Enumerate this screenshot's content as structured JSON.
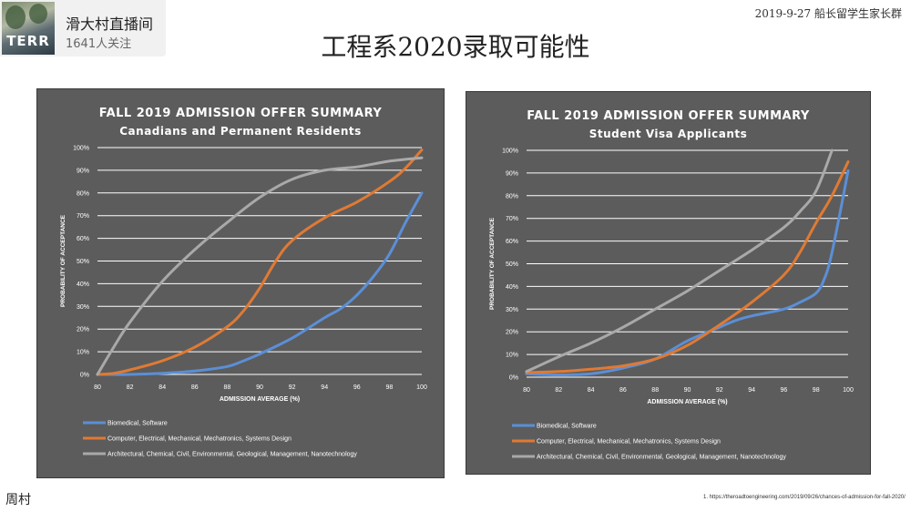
{
  "channel": {
    "name": "滑大村直播间",
    "followers": "1641人关注",
    "logo_text": "TERR"
  },
  "date_note": "2019-9-27 船长留学生家长群",
  "slide_title": "工程系2020录取可能性",
  "author": "周村",
  "footnote": "1.   https://theroadtoengineering.com/2019/09/26/chances-of-admission-for-fall-2020/",
  "colors": {
    "blue": "#5b8fd6",
    "orange": "#e07a34",
    "gray": "#a9a9a9",
    "panel": "#5c5c5c"
  },
  "chart_data": [
    {
      "type": "line",
      "title": "FALL 2019 ADMISSION OFFER SUMMARY",
      "subtitle": "Canadians and Permanent Residents",
      "xlabel": "ADMISSION AVERAGE (%)",
      "ylabel": "PROBABILITY OF ACCEPTANCE",
      "xlim": [
        80,
        100
      ],
      "ylim": [
        0,
        100
      ],
      "x_ticks": [
        "80",
        "82",
        "84",
        "86",
        "88",
        "90",
        "92",
        "94",
        "96",
        "98",
        "100"
      ],
      "y_ticks": [
        "0%",
        "10%",
        "20%",
        "30%",
        "40%",
        "50%",
        "60%",
        "70%",
        "80%",
        "90%",
        "100%"
      ],
      "grid": "horizontal",
      "legend_position": "bottom",
      "series": [
        {
          "name": "Biomedical, Software",
          "color": "#5b8fd6",
          "points": [
            [
              80,
              0
            ],
            [
              82,
              0
            ],
            [
              84,
              0.5
            ],
            [
              86,
              1.5
            ],
            [
              88,
              3.5
            ],
            [
              89,
              6
            ],
            [
              90,
              9
            ],
            [
              92,
              16
            ],
            [
              94,
              25
            ],
            [
              95,
              29
            ],
            [
              96,
              35
            ],
            [
              97,
              43
            ],
            [
              98,
              53
            ],
            [
              99,
              67
            ],
            [
              100,
              80
            ]
          ]
        },
        {
          "name": "Computer, Electrical, Mechanical, Mechatronics, Systems Design",
          "color": "#e07a34",
          "points": [
            [
              80,
              0
            ],
            [
              81,
              0.5
            ],
            [
              82,
              2
            ],
            [
              84,
              6
            ],
            [
              86,
              12
            ],
            [
              88,
              21
            ],
            [
              89,
              28
            ],
            [
              90,
              38
            ],
            [
              91,
              50
            ],
            [
              92,
              59
            ],
            [
              94,
              69
            ],
            [
              96,
              76
            ],
            [
              98,
              85
            ],
            [
              99,
              91
            ],
            [
              100,
              99
            ]
          ]
        },
        {
          "name": "Architectural, Chemical, Civil, Environmental, Geological, Management, Nanotechnology",
          "color": "#a9a9a9",
          "points": [
            [
              80,
              0
            ],
            [
              81,
              12
            ],
            [
              82,
              23
            ],
            [
              84,
              41
            ],
            [
              86,
              55
            ],
            [
              88,
              67
            ],
            [
              90,
              78
            ],
            [
              92,
              86
            ],
            [
              94,
              90
            ],
            [
              96,
              91.5
            ],
            [
              98,
              94
            ],
            [
              100,
              95.5
            ]
          ]
        }
      ]
    },
    {
      "type": "line",
      "title": "FALL 2019 ADMISSION OFFER SUMMARY",
      "subtitle": "Student Visa Applicants",
      "xlabel": "ADMISSION AVERAGE (%)",
      "ylabel": "PROBABILITY OF ACCEPTANCE",
      "xlim": [
        80,
        100
      ],
      "ylim": [
        0,
        100
      ],
      "x_ticks": [
        "80",
        "82",
        "84",
        "86",
        "88",
        "90",
        "92",
        "94",
        "96",
        "98",
        "100"
      ],
      "y_ticks": [
        "0%",
        "10%",
        "20%",
        "30%",
        "40%",
        "50%",
        "60%",
        "70%",
        "80%",
        "90%",
        "100%"
      ],
      "grid": "horizontal",
      "legend_position": "bottom",
      "series": [
        {
          "name": "Biomedical, Software",
          "color": "#5b8fd6",
          "points": [
            [
              80,
              1.5
            ],
            [
              82,
              1
            ],
            [
              84,
              1.5
            ],
            [
              86,
              4
            ],
            [
              88,
              8
            ],
            [
              90,
              16
            ],
            [
              92,
              22
            ],
            [
              93,
              25
            ],
            [
              94,
              27
            ],
            [
              96,
              30
            ],
            [
              97,
              33
            ],
            [
              98,
              37
            ],
            [
              98.5,
              43
            ],
            [
              99,
              55
            ],
            [
              100,
              91
            ]
          ]
        },
        {
          "name": "Computer, Electrical, Mechanical, Mechatronics, Systems Design",
          "color": "#e07a34",
          "points": [
            [
              80,
              2
            ],
            [
              82,
              2.5
            ],
            [
              84,
              3.5
            ],
            [
              86,
              5
            ],
            [
              88,
              8
            ],
            [
              90,
              14
            ],
            [
              92,
              23
            ],
            [
              94,
              33
            ],
            [
              96,
              45
            ],
            [
              97,
              55
            ],
            [
              98,
              68
            ],
            [
              99,
              80
            ],
            [
              100,
              95
            ]
          ]
        },
        {
          "name": "Architectural, Chemical, Civil, Environmental, Geological, Management, Nanotechnology",
          "color": "#a9a9a9",
          "points": [
            [
              80,
              2.5
            ],
            [
              82,
              9
            ],
            [
              84,
              15
            ],
            [
              86,
              22
            ],
            [
              88,
              30
            ],
            [
              90,
              38
            ],
            [
              92,
              47
            ],
            [
              94,
              56
            ],
            [
              96,
              66
            ],
            [
              97,
              73
            ],
            [
              98,
              82
            ],
            [
              99,
              100
            ]
          ]
        }
      ]
    }
  ]
}
